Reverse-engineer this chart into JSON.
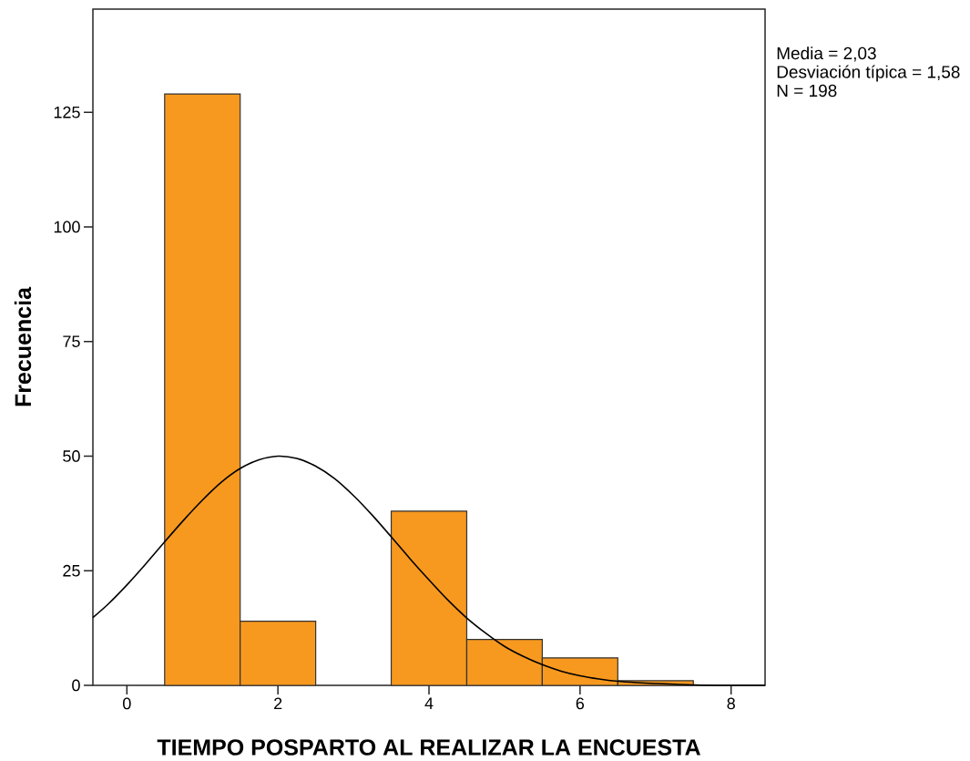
{
  "chart_data": {
    "type": "histogram",
    "xlabel": "TIEMPO POSPARTO AL REALIZAR LA ENCUESTA",
    "ylabel": "Frecuencia",
    "annotations": [
      "Media = 2,03",
      "Desviación típica = 1,58",
      "N = 198"
    ],
    "bins": [
      0.5,
      1.5,
      2.5,
      3.5,
      4.5,
      5.5,
      6.5,
      7.5
    ],
    "values": [
      129,
      14,
      0,
      38,
      10,
      6,
      1
    ],
    "color": "#f7991f",
    "series": [
      {
        "type": "line",
        "color": "#000000",
        "marker": "none",
        "line_style": "solid",
        "x": [
          -0.45,
          -0.25,
          0,
          0.25,
          0.5,
          0.75,
          1,
          1.25,
          1.5,
          1.75,
          2,
          2.25,
          2.5,
          2.75,
          3,
          3.25,
          3.5,
          3.75,
          4,
          4.25,
          4.5,
          4.75,
          5,
          5.25,
          5.5,
          5.75,
          6,
          6.25,
          6.5,
          6.75,
          7,
          7.5,
          8,
          8.45
        ],
        "values": [
          14.8,
          17.7,
          21.9,
          26.5,
          31.3,
          36.0,
          40.4,
          44.3,
          47.3,
          49.2,
          50.0,
          49.5,
          47.8,
          45.1,
          41.4,
          37.1,
          32.4,
          27.6,
          23.0,
          18.6,
          14.7,
          11.4,
          8.5,
          6.3,
          4.5,
          3.1,
          2.1,
          1.4,
          0.9,
          0.6,
          0.4,
          0.1,
          0.0,
          0.0
        ]
      }
    ],
    "xlim": [
      -0.45,
      8.45
    ],
    "ylim": [
      0,
      147.5
    ],
    "xticks": [
      0,
      2,
      4,
      6,
      8
    ],
    "yticks": [
      0,
      25,
      50,
      75,
      100,
      125
    ]
  }
}
